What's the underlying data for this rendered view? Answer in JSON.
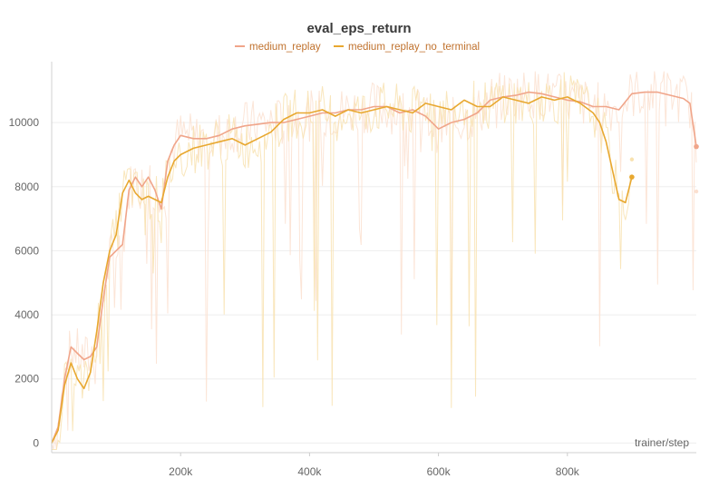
{
  "chart_data": {
    "type": "line",
    "title": "eval_eps_return",
    "xlabel": "trainer/step",
    "ylabel": "",
    "xlim": [
      0,
      1000000
    ],
    "ylim": [
      -300,
      11900
    ],
    "x_ticks": [
      200000,
      400000,
      600000,
      800000
    ],
    "x_tick_labels": [
      "200k",
      "400k",
      "600k",
      "800k"
    ],
    "y_ticks": [
      0,
      2000,
      4000,
      6000,
      8000,
      10000
    ],
    "y_tick_labels": [
      "0",
      "2000",
      "4000",
      "6000",
      "8000",
      "10000"
    ],
    "grid": true,
    "legend_position": "top-center",
    "series": [
      {
        "name": "medium_replay",
        "color": "#f0a58a",
        "raw_color": "#fbe0d0",
        "end_raw_value": 7850,
        "x": [
          0,
          10000,
          20000,
          30000,
          40000,
          50000,
          60000,
          70000,
          80000,
          90000,
          100000,
          110000,
          120000,
          130000,
          140000,
          150000,
          160000,
          170000,
          180000,
          190000,
          200000,
          220000,
          240000,
          260000,
          280000,
          300000,
          320000,
          340000,
          360000,
          380000,
          400000,
          420000,
          440000,
          460000,
          480000,
          500000,
          520000,
          540000,
          560000,
          580000,
          600000,
          620000,
          640000,
          660000,
          680000,
          700000,
          720000,
          740000,
          760000,
          780000,
          800000,
          820000,
          840000,
          860000,
          880000,
          900000,
          920000,
          940000,
          960000,
          980000,
          990000,
          1000000
        ],
        "values": [
          0,
          500,
          2000,
          3000,
          2800,
          2600,
          2700,
          3000,
          4500,
          5800,
          6000,
          6200,
          7900,
          8300,
          8000,
          8300,
          7900,
          7300,
          8800,
          9300,
          9600,
          9500,
          9500,
          9600,
          9800,
          9900,
          9950,
          10000,
          10000,
          10100,
          10200,
          10300,
          10300,
          10400,
          10400,
          10500,
          10500,
          10300,
          10400,
          10200,
          9800,
          10000,
          10100,
          10300,
          10700,
          10800,
          10850,
          10950,
          10900,
          10800,
          10700,
          10650,
          10500,
          10500,
          10400,
          10900,
          10950,
          10950,
          10850,
          10750,
          10600,
          9250
        ]
      },
      {
        "name": "medium_replay_no_terminal",
        "color": "#e8a830",
        "raw_color": "#f8e2b0",
        "end_raw_value": 8850,
        "x": [
          0,
          10000,
          20000,
          30000,
          40000,
          50000,
          60000,
          70000,
          80000,
          90000,
          100000,
          110000,
          120000,
          130000,
          140000,
          150000,
          160000,
          170000,
          180000,
          190000,
          200000,
          220000,
          240000,
          260000,
          280000,
          300000,
          320000,
          340000,
          360000,
          380000,
          400000,
          420000,
          440000,
          460000,
          480000,
          500000,
          520000,
          540000,
          560000,
          580000,
          600000,
          620000,
          640000,
          660000,
          680000,
          700000,
          720000,
          740000,
          760000,
          780000,
          800000,
          820000,
          840000,
          850000,
          860000,
          870000,
          880000,
          890000,
          900000
        ],
        "values": [
          0,
          400,
          1800,
          2500,
          2000,
          1700,
          2200,
          3500,
          5000,
          6000,
          6500,
          7800,
          8200,
          7800,
          7600,
          7700,
          7600,
          7500,
          8300,
          8800,
          9000,
          9200,
          9300,
          9400,
          9500,
          9300,
          9500,
          9700,
          10100,
          10300,
          10300,
          10400,
          10200,
          10400,
          10300,
          10400,
          10500,
          10400,
          10300,
          10600,
          10500,
          10400,
          10700,
          10500,
          10500,
          10800,
          10700,
          10600,
          10800,
          10700,
          10800,
          10600,
          10300,
          10000,
          9400,
          8500,
          7600,
          7500,
          8300
        ]
      }
    ]
  }
}
